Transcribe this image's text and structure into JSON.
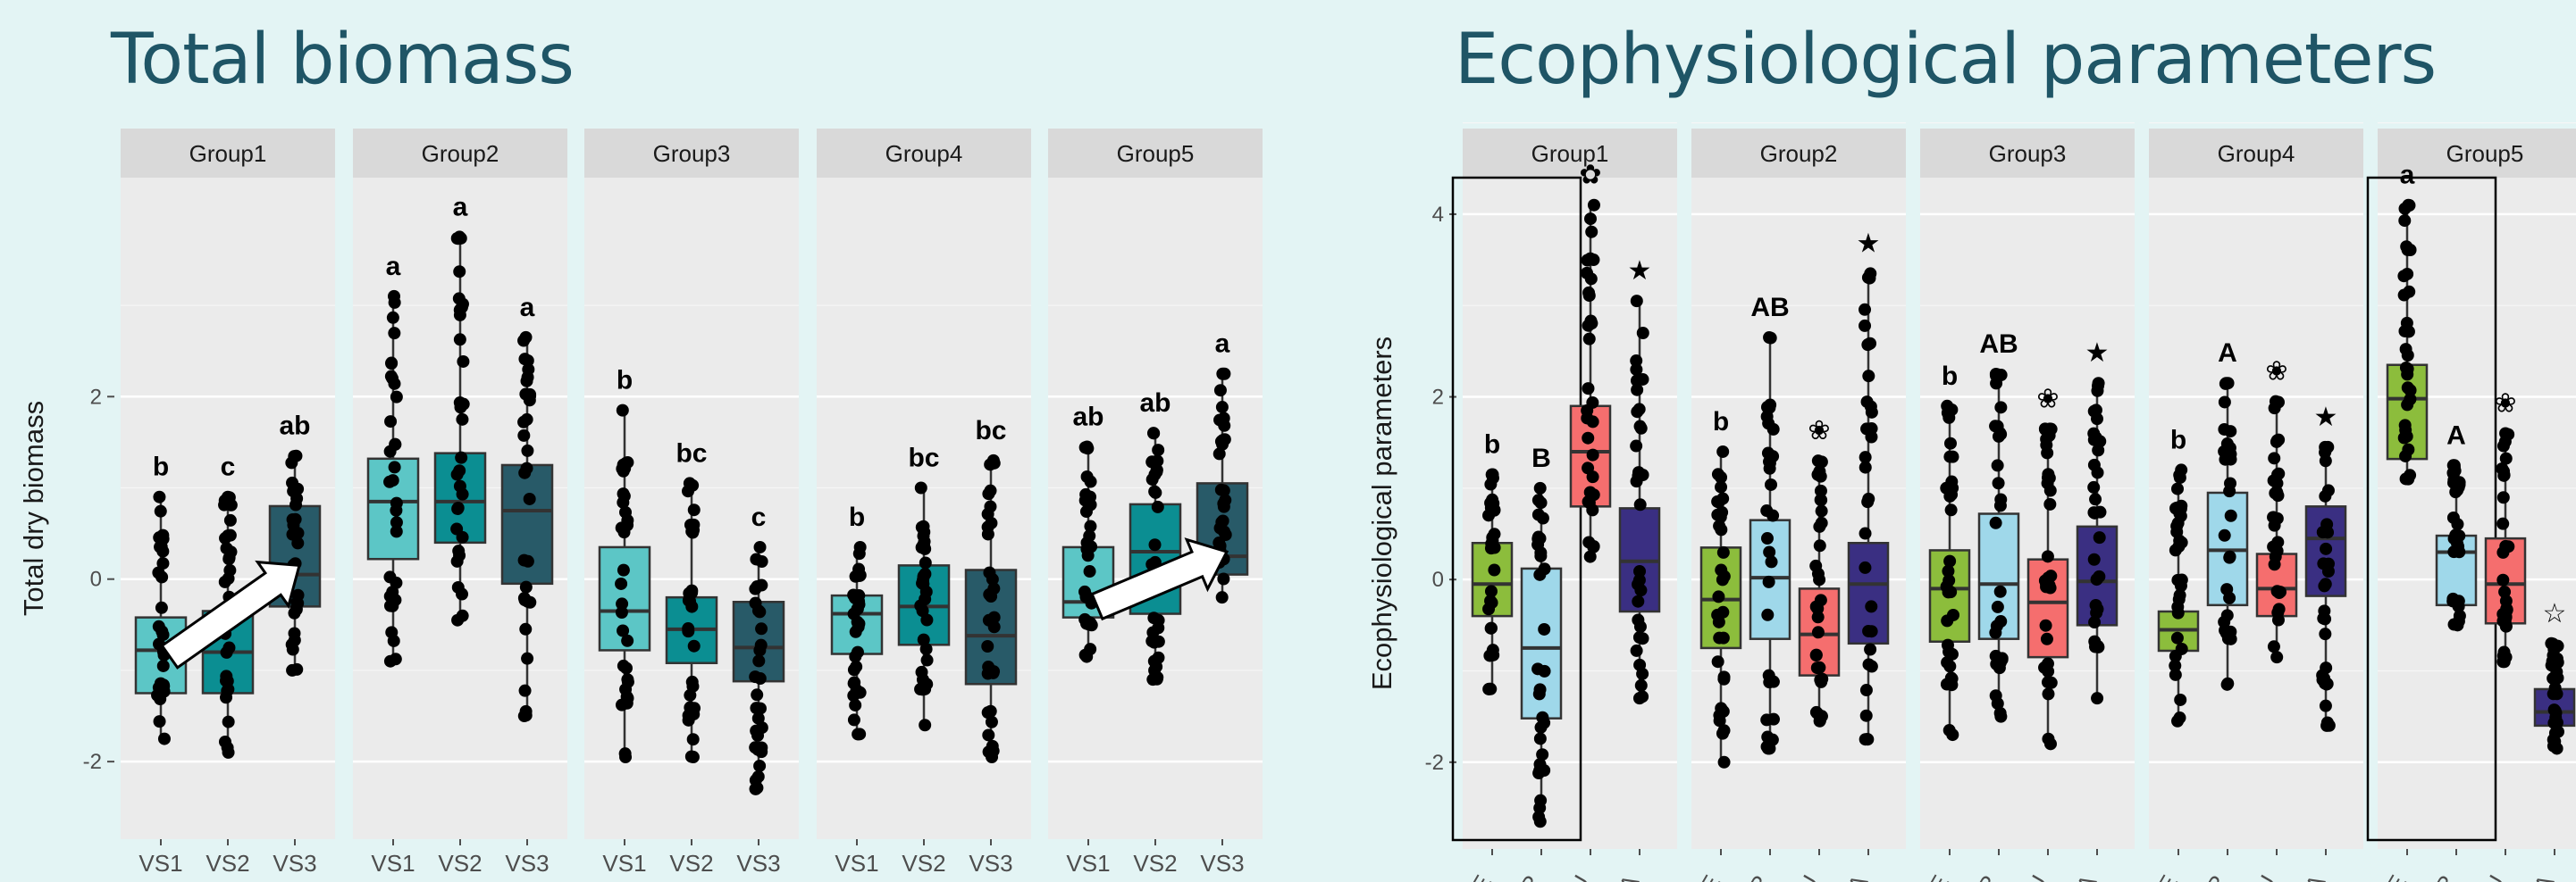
{
  "headings": {
    "left": "Total biomass",
    "right": "Ecophysiological parameters"
  },
  "chart_data": [
    {
      "type": "box",
      "title": "Total biomass",
      "ylabel": "Total dry biomass",
      "xlabel": "",
      "ylim": [
        -2.85,
        4.4
      ],
      "yticks": [
        -2,
        0,
        2
      ],
      "grid": true,
      "legend": "none",
      "panels": [
        {
          "name": "Group1",
          "categories": [
            "VS1",
            "VS2",
            "VS3"
          ],
          "boxes": [
            {
              "q1": -1.25,
              "median": -0.78,
              "q3": -0.42,
              "min": -1.75,
              "max": 0.9,
              "letter": "b",
              "color": "#5cc6c6"
            },
            {
              "q1": -1.25,
              "median": -0.8,
              "q3": -0.35,
              "min": -1.9,
              "max": 0.9,
              "letter": "c",
              "color": "#0b8e92"
            },
            {
              "q1": -0.3,
              "median": 0.05,
              "q3": 0.8,
              "min": -1.0,
              "max": 1.35,
              "letter": "ab",
              "color": "#285a68"
            }
          ],
          "arrow": {
            "from": -0.85,
            "to": 0.15
          }
        },
        {
          "name": "Group2",
          "categories": [
            "VS1",
            "VS2",
            "VS3"
          ],
          "boxes": [
            {
              "q1": 0.22,
              "median": 0.85,
              "q3": 1.32,
              "min": -0.9,
              "max": 3.1,
              "letter": "a",
              "color": "#5cc6c6"
            },
            {
              "q1": 0.4,
              "median": 0.85,
              "q3": 1.38,
              "min": -0.45,
              "max": 3.75,
              "letter": "a",
              "color": "#0b8e92"
            },
            {
              "q1": -0.05,
              "median": 0.75,
              "q3": 1.25,
              "min": -1.5,
              "max": 2.65,
              "letter": "a",
              "color": "#285a68"
            }
          ]
        },
        {
          "name": "Group3",
          "categories": [
            "VS1",
            "VS2",
            "VS3"
          ],
          "boxes": [
            {
              "q1": -0.78,
              "median": -0.35,
              "q3": 0.35,
              "min": -1.95,
              "max": 1.85,
              "letter": "b",
              "color": "#5cc6c6"
            },
            {
              "q1": -0.92,
              "median": -0.55,
              "q3": -0.2,
              "min": -1.95,
              "max": 1.05,
              "letter": "bc",
              "color": "#0b8e92"
            },
            {
              "q1": -1.12,
              "median": -0.75,
              "q3": -0.25,
              "min": -2.3,
              "max": 0.35,
              "letter": "c",
              "color": "#285a68"
            }
          ]
        },
        {
          "name": "Group4",
          "categories": [
            "VS1",
            "VS2",
            "VS3"
          ],
          "boxes": [
            {
              "q1": -0.82,
              "median": -0.38,
              "q3": -0.18,
              "min": -1.7,
              "max": 0.35,
              "letter": "b",
              "color": "#5cc6c6"
            },
            {
              "q1": -0.72,
              "median": -0.3,
              "q3": 0.15,
              "min": -1.6,
              "max": 1.0,
              "letter": "bc",
              "color": "#0b8e92"
            },
            {
              "q1": -1.15,
              "median": -0.62,
              "q3": 0.1,
              "min": -1.95,
              "max": 1.3,
              "letter": "bc",
              "color": "#285a68"
            }
          ]
        },
        {
          "name": "Group5",
          "categories": [
            "VS1",
            "VS2",
            "VS3"
          ],
          "boxes": [
            {
              "q1": -0.42,
              "median": -0.25,
              "q3": 0.35,
              "min": -0.85,
              "max": 1.45,
              "letter": "ab",
              "color": "#5cc6c6"
            },
            {
              "q1": -0.38,
              "median": 0.3,
              "q3": 0.82,
              "min": -1.1,
              "max": 1.6,
              "letter": "ab",
              "color": "#0b8e92"
            },
            {
              "q1": 0.05,
              "median": 0.25,
              "q3": 1.05,
              "min": -0.2,
              "max": 2.25,
              "letter": "a",
              "color": "#285a68"
            }
          ],
          "arrow": {
            "from": -0.3,
            "to": 0.3
          }
        }
      ]
    },
    {
      "type": "box",
      "title": "Ecophysiological parameters",
      "ylabel": "Ecophysiological parameters",
      "xlabel": "",
      "ylim": [
        -2.95,
        4.4
      ],
      "yticks": [
        -2,
        0,
        2,
        4
      ],
      "grid": true,
      "legend": "none",
      "panels": [
        {
          "name": "Group1",
          "categories": [
            "ME",
            "TR",
            "WU",
            "LA"
          ],
          "highlight": [
            0,
            1
          ],
          "boxes": [
            {
              "q1": -0.4,
              "median": -0.05,
              "q3": 0.4,
              "min": -1.2,
              "max": 1.15,
              "letter": "b",
              "color": "#8cbd3c"
            },
            {
              "q1": -1.52,
              "median": -0.75,
              "q3": 0.12,
              "min": -2.65,
              "max": 1.0,
              "letter": "B",
              "color": "#9fd8ea"
            },
            {
              "q1": 0.8,
              "median": 1.4,
              "q3": 1.9,
              "min": 0.25,
              "max": 4.1,
              "letter": "✿",
              "color": "#f56e6e"
            },
            {
              "q1": -0.35,
              "median": 0.2,
              "q3": 0.78,
              "min": -1.3,
              "max": 3.05,
              "letter": "★",
              "color": "#3a2f82"
            }
          ]
        },
        {
          "name": "Group2",
          "categories": [
            "ME",
            "TR",
            "WU",
            "LA"
          ],
          "boxes": [
            {
              "q1": -0.75,
              "median": -0.22,
              "q3": 0.35,
              "min": -2.0,
              "max": 1.4,
              "letter": "b",
              "color": "#8cbd3c"
            },
            {
              "q1": -0.65,
              "median": 0.02,
              "q3": 0.65,
              "min": -1.85,
              "max": 2.65,
              "letter": "AB",
              "color": "#9fd8ea"
            },
            {
              "q1": -1.05,
              "median": -0.6,
              "q3": -0.1,
              "min": -1.55,
              "max": 1.3,
              "letter": "❀",
              "color": "#f56e6e"
            },
            {
              "q1": -0.7,
              "median": -0.05,
              "q3": 0.4,
              "min": -1.75,
              "max": 3.35,
              "letter": "★",
              "color": "#3a2f82"
            }
          ]
        },
        {
          "name": "Group3",
          "categories": [
            "ME",
            "TR",
            "WU",
            "LA"
          ],
          "boxes": [
            {
              "q1": -0.68,
              "median": -0.1,
              "q3": 0.32,
              "min": -1.7,
              "max": 1.9,
              "letter": "b",
              "color": "#8cbd3c"
            },
            {
              "q1": -0.65,
              "median": -0.05,
              "q3": 0.72,
              "min": -1.5,
              "max": 2.25,
              "letter": "AB",
              "color": "#9fd8ea"
            },
            {
              "q1": -0.85,
              "median": -0.25,
              "q3": 0.22,
              "min": -1.8,
              "max": 1.65,
              "letter": "❀",
              "color": "#f56e6e"
            },
            {
              "q1": -0.5,
              "median": -0.02,
              "q3": 0.58,
              "min": -1.3,
              "max": 2.15,
              "letter": "★",
              "color": "#3a2f82"
            }
          ]
        },
        {
          "name": "Group4",
          "categories": [
            "ME",
            "TR",
            "WU",
            "LA"
          ],
          "boxes": [
            {
              "q1": -0.78,
              "median": -0.55,
              "q3": -0.35,
              "min": -1.55,
              "max": 1.2,
              "letter": "b",
              "color": "#8cbd3c"
            },
            {
              "q1": -0.28,
              "median": 0.32,
              "q3": 0.95,
              "min": -1.15,
              "max": 2.15,
              "letter": "A",
              "color": "#9fd8ea"
            },
            {
              "q1": -0.4,
              "median": -0.1,
              "q3": 0.28,
              "min": -0.85,
              "max": 1.95,
              "letter": "❀",
              "color": "#f56e6e"
            },
            {
              "q1": -0.18,
              "median": 0.45,
              "q3": 0.8,
              "min": -1.6,
              "max": 1.45,
              "letter": "★",
              "color": "#3a2f82"
            }
          ]
        },
        {
          "name": "Group5",
          "categories": [
            "ME",
            "TR",
            "WU",
            "LA"
          ],
          "highlight": [
            0,
            1
          ],
          "boxes": [
            {
              "q1": 1.32,
              "median": 1.98,
              "q3": 2.35,
              "min": 1.1,
              "max": 4.1,
              "letter": "a",
              "color": "#8cbd3c"
            },
            {
              "q1": -0.28,
              "median": 0.3,
              "q3": 0.48,
              "min": -0.5,
              "max": 1.25,
              "letter": "A",
              "color": "#9fd8ea"
            },
            {
              "q1": -0.48,
              "median": -0.05,
              "q3": 0.45,
              "min": -0.9,
              "max": 1.6,
              "letter": "❀",
              "color": "#f56e6e"
            },
            {
              "q1": -1.6,
              "median": -1.45,
              "q3": -1.2,
              "min": -1.85,
              "max": -0.7,
              "letter": "☆",
              "color": "#3a2f82"
            }
          ]
        }
      ]
    }
  ]
}
